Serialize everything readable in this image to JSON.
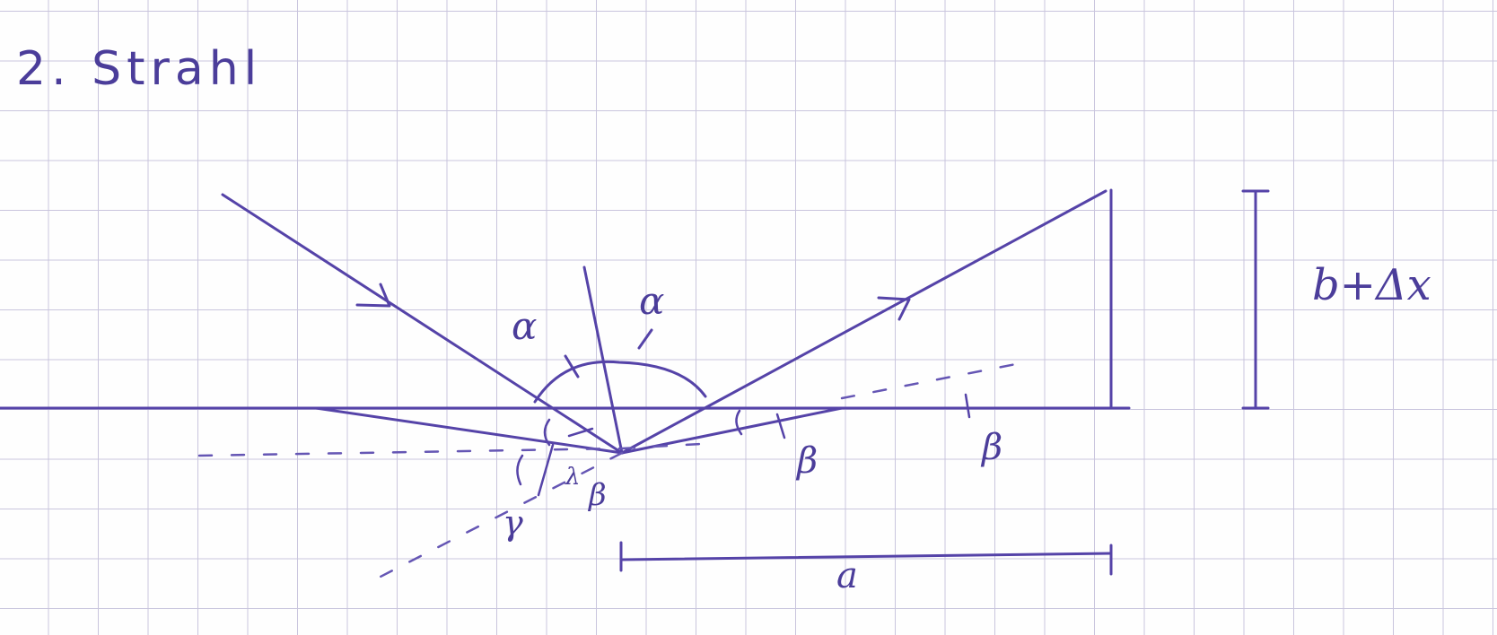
{
  "title": "2. Strahl",
  "labels": {
    "alpha_left": "α",
    "alpha_right": "α",
    "beta_bottom_left": "β",
    "beta_mid": "β",
    "beta_right": "β",
    "gamma": "γ",
    "lambda": "λ",
    "height": "b+Δx",
    "distance": "a"
  },
  "colors": {
    "ink": "#4b3d9a",
    "grid": "#c9c5dd"
  }
}
